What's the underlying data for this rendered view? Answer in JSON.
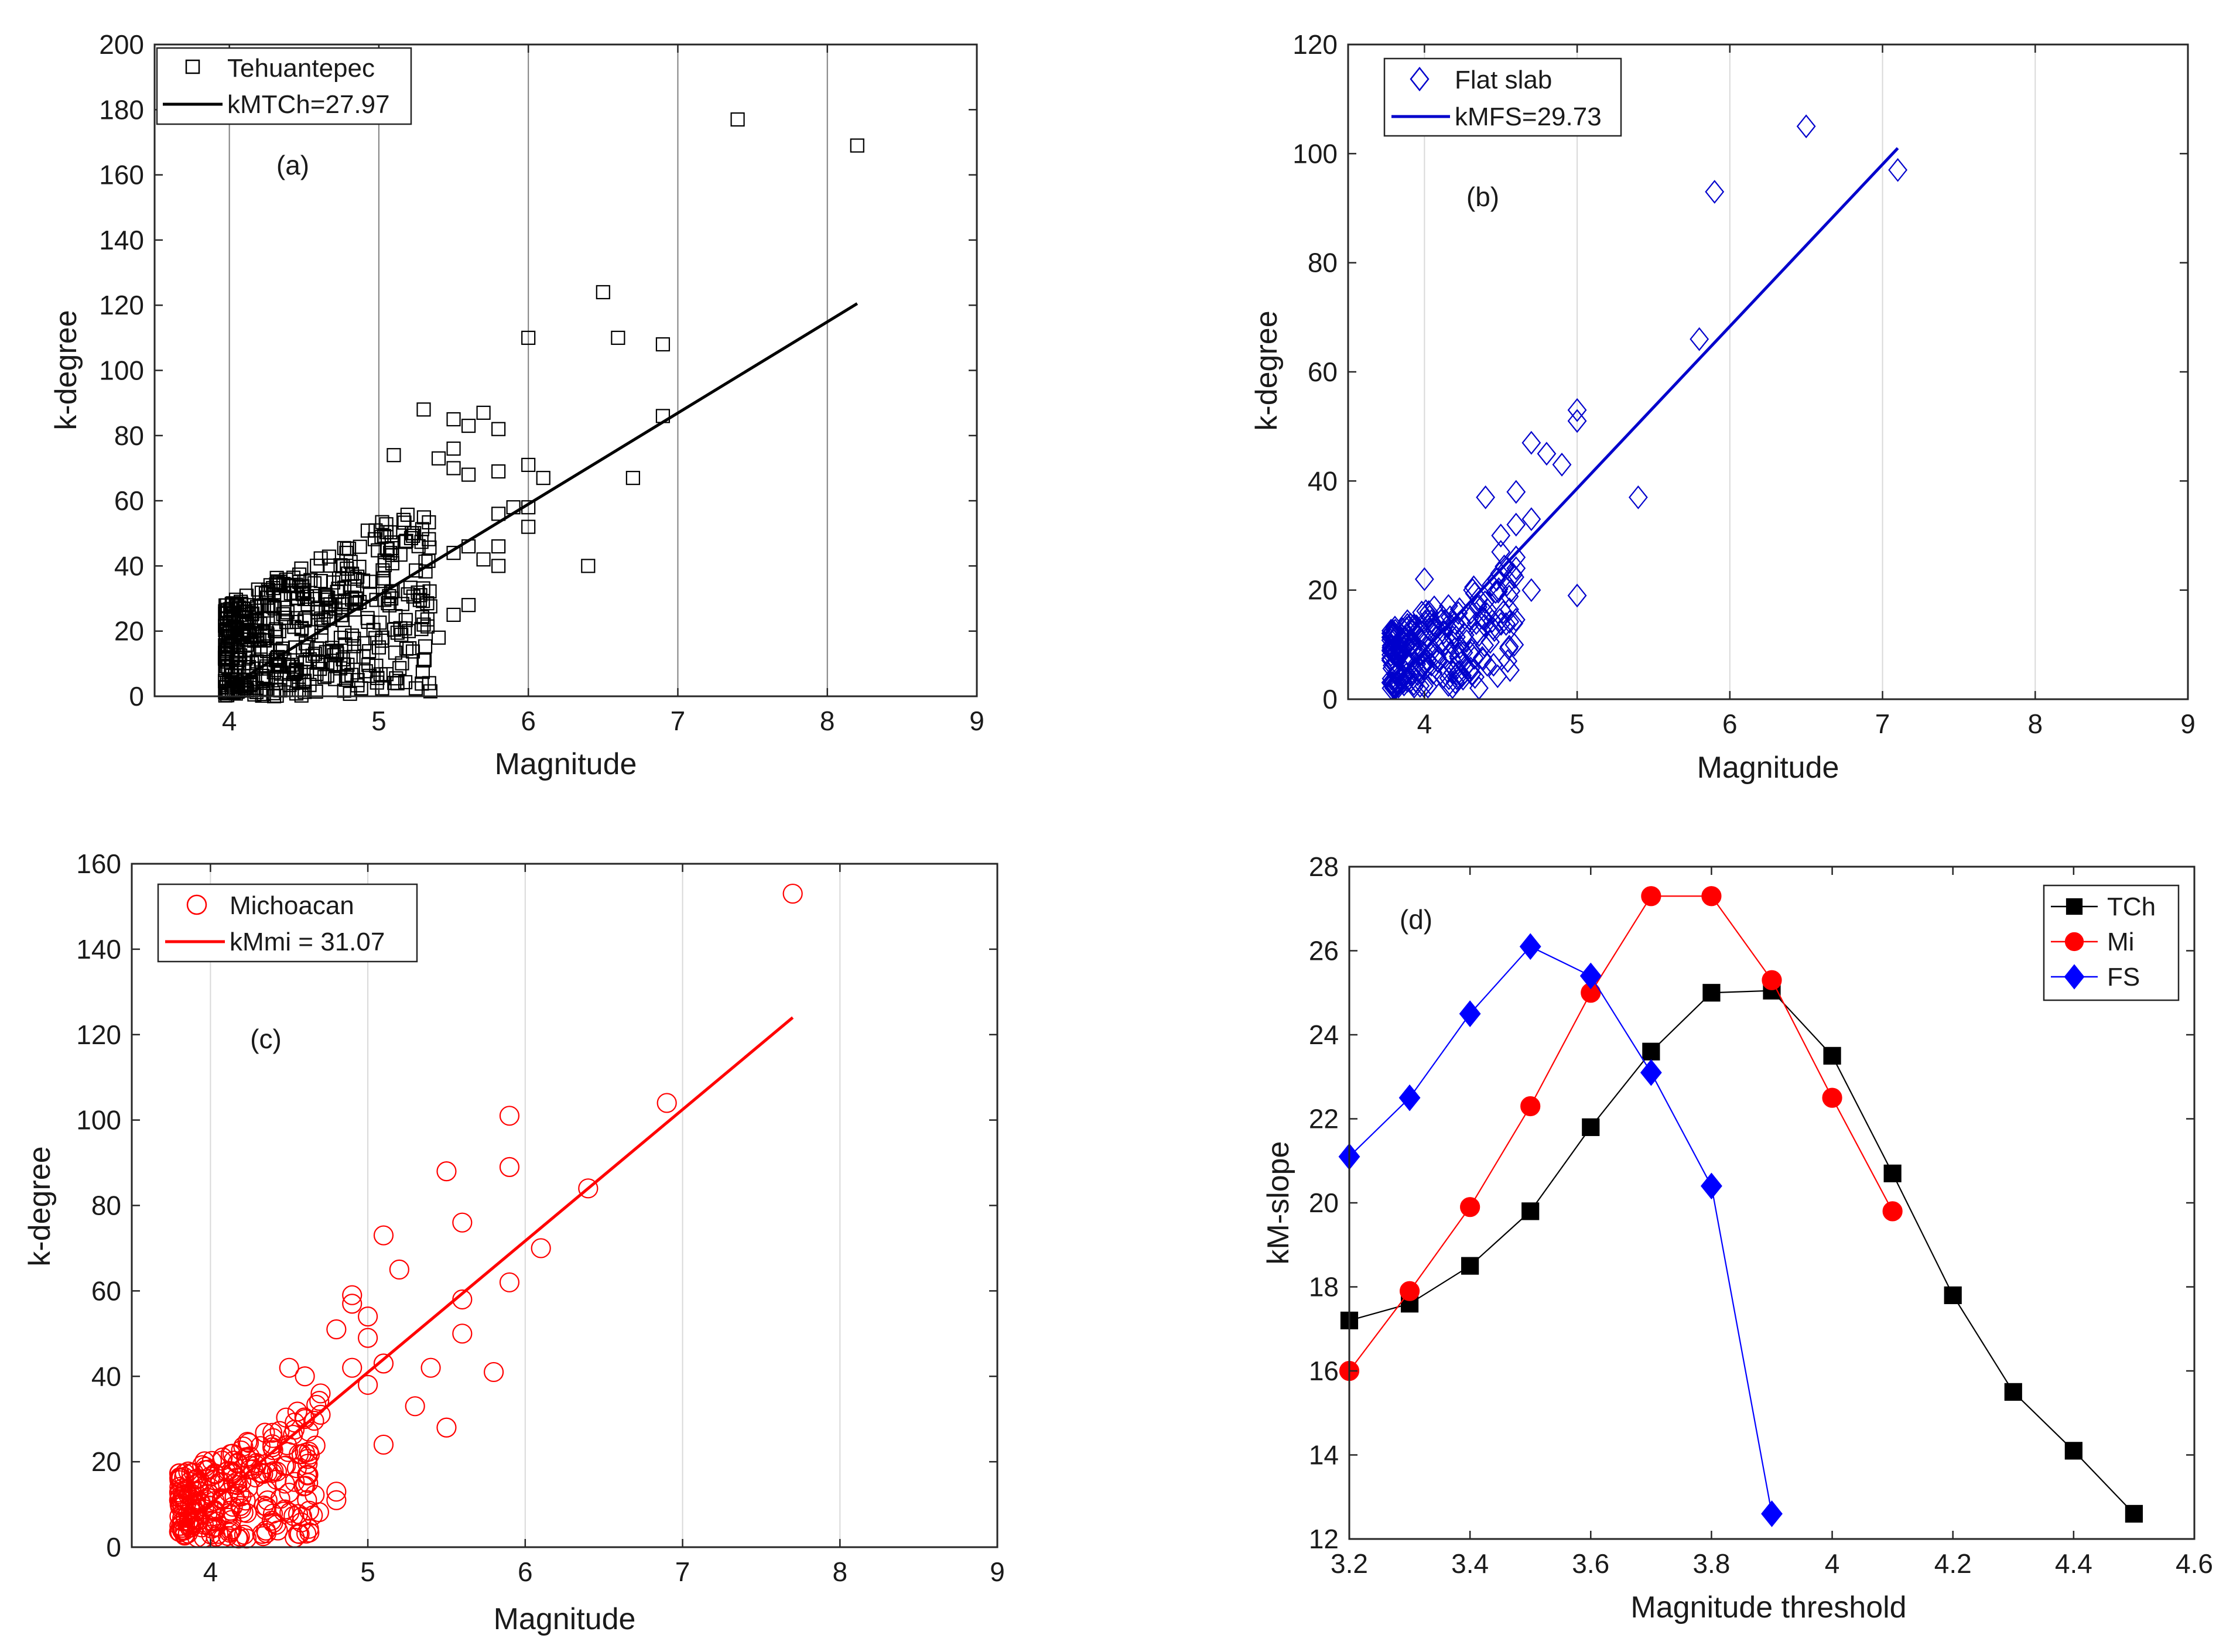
{
  "chart_data": [
    {
      "id": "a",
      "type": "scatter",
      "panel_label": "(a)",
      "xlabel": "Magnitude",
      "ylabel": "k-degree",
      "xlim": [
        3.5,
        9
      ],
      "ylim": [
        0,
        200
      ],
      "xticks": [
        4,
        5,
        6,
        7,
        8,
        9
      ],
      "yticks": [
        0,
        20,
        40,
        60,
        80,
        100,
        120,
        140,
        160,
        180,
        200
      ],
      "grid": "vertical",
      "grid_color": "#808080",
      "color": "#000000",
      "marker": "square",
      "legend": {
        "position": "top-left",
        "scatter_label": "Tehuantepec",
        "line_label": "kMTCh=27.97"
      },
      "fit_line": {
        "x": [
          4.0,
          8.2
        ],
        "y": [
          3.0,
          120.5
        ]
      },
      "series": [
        {
          "name": "Tehuantepec",
          "x": [
            7.4,
            8.2,
            6.5,
            6.6,
            6.9,
            6.0,
            6.9,
            5.3,
            5.5,
            5.6,
            5.7,
            5.8,
            5.1,
            5.5,
            5.4,
            6.0,
            6.1,
            6.7,
            5.5,
            5.6,
            5.8,
            5.8,
            5.9,
            6.0,
            6.0,
            5.8,
            5.5,
            5.6,
            5.7,
            5.8,
            6.4,
            5.3,
            5.5,
            5.6,
            5.2,
            5.0,
            5.3,
            5.4
          ],
          "y": [
            177,
            169,
            124,
            110,
            108,
            110,
            86,
            88,
            85,
            83,
            87,
            82,
            74,
            76,
            73,
            71,
            67,
            67,
            70,
            68,
            69,
            56,
            58,
            52,
            58,
            46,
            44,
            46,
            42,
            40,
            40,
            22,
            25,
            28,
            20,
            15,
            11,
            18
          ]
        },
        {
          "name": "Tehuantepec (dense cluster)",
          "x_range": [
            3.97,
            5.35
          ],
          "y_range": [
            0,
            62
          ],
          "approx_count": 520
        }
      ]
    },
    {
      "id": "b",
      "type": "scatter",
      "panel_label": "(b)",
      "xlabel": "Magnitude",
      "ylabel": "k-degree",
      "xlim": [
        3.5,
        9
      ],
      "ylim": [
        0,
        120
      ],
      "xticks": [
        4,
        5,
        6,
        7,
        8,
        9
      ],
      "yticks": [
        0,
        20,
        40,
        60,
        80,
        100,
        120
      ],
      "grid": "vertical",
      "grid_color": "#d9d9d9",
      "color": "#0000cc",
      "marker": "diamond",
      "legend": {
        "position": "top-left",
        "scatter_label": "Flat slab",
        "line_label": "kMFS=29.73"
      },
      "fit_line": {
        "x": [
          3.8,
          7.1
        ],
        "y": [
          3.0,
          101.0
        ]
      },
      "series": [
        {
          "name": "Flat slab",
          "x": [
            6.5,
            7.1,
            5.9,
            5.8,
            5.0,
            5.0,
            4.7,
            4.8,
            4.9,
            4.6,
            4.7,
            5.4,
            5.0,
            4.6,
            4.5,
            4.4,
            4.7,
            4.6,
            4.0,
            4.5,
            4.6
          ],
          "y": [
            105,
            97,
            93,
            66,
            53,
            51,
            47,
            45,
            43,
            38,
            33,
            37,
            19,
            32,
            30,
            37,
            20,
            24,
            22,
            27,
            26
          ]
        },
        {
          "name": "Flat slab (dense cluster)",
          "x_range": [
            3.78,
            4.6
          ],
          "y_range": [
            2,
            26
          ],
          "approx_count": 240
        }
      ]
    },
    {
      "id": "c",
      "type": "scatter",
      "panel_label": "(c)",
      "xlabel": "Magnitude",
      "ylabel": "k-degree",
      "xlim": [
        3.5,
        9
      ],
      "ylim": [
        0,
        160
      ],
      "xticks": [
        4,
        5,
        6,
        7,
        8,
        9
      ],
      "yticks": [
        0,
        20,
        40,
        60,
        80,
        100,
        120,
        140,
        160
      ],
      "grid": "vertical",
      "grid_color": "#d9d9d9",
      "color": "#ff0000",
      "marker": "circle",
      "legend": {
        "position": "top-left",
        "scatter_label": "Michoacan",
        "line_label": "kMmi = 31.07"
      },
      "fit_line": {
        "x": [
          3.8,
          7.7
        ],
        "y": [
          4.0,
          124.0
        ]
      },
      "series": [
        {
          "name": "Michoacan",
          "x": [
            7.7,
            6.9,
            5.9,
            5.5,
            5.9,
            6.4,
            5.6,
            5.1,
            6.1,
            5.2,
            4.9,
            4.9,
            5.0,
            5.0,
            4.8,
            5.6,
            5.6,
            5.9,
            5.8,
            5.4,
            5.1,
            5.3,
            5.5,
            5.1,
            4.8,
            4.8,
            4.9,
            5.0,
            4.5,
            4.6,
            4.7,
            4.6,
            4.7
          ],
          "y": [
            153,
            104,
            101,
            88,
            89,
            84,
            76,
            73,
            70,
            65,
            59,
            57,
            54,
            49,
            51,
            58,
            50,
            62,
            41,
            42,
            43,
            33,
            28,
            24,
            13,
            11,
            42,
            38,
            42,
            40,
            36,
            30,
            31
          ]
        },
        {
          "name": "Michoacan (dense cluster)",
          "x_range": [
            3.8,
            4.7
          ],
          "y_range": [
            2,
            36
          ],
          "approx_count": 260
        }
      ]
    },
    {
      "id": "d",
      "type": "line",
      "panel_label": "(d)",
      "xlabel": "Magnitude threshold",
      "ylabel": "kM-slope",
      "xlim": [
        3.2,
        4.6
      ],
      "ylim": [
        12,
        28
      ],
      "xticks": [
        "3.2",
        "3.4",
        "3.6",
        "3.8",
        "4",
        "4.2",
        "4.4",
        "4.6"
      ],
      "yticks": [
        "12",
        "14",
        "16",
        "18",
        "20",
        "22",
        "24",
        "26",
        "28"
      ],
      "grid": "none",
      "legend": {
        "position": "top-right"
      },
      "series": [
        {
          "name": "TCh",
          "color": "#000000",
          "marker": "square",
          "x": [
            3.2,
            3.3,
            3.4,
            3.5,
            3.6,
            3.7,
            3.8,
            3.9,
            4.0,
            4.1,
            4.2,
            4.3,
            4.4,
            4.5
          ],
          "y": [
            17.2,
            17.6,
            18.5,
            19.8,
            21.8,
            23.6,
            25.0,
            25.05,
            23.5,
            20.7,
            17.8,
            15.5,
            14.1,
            12.6
          ]
        },
        {
          "name": "Mi",
          "color": "#ff0000",
          "marker": "circle",
          "x": [
            3.2,
            3.3,
            3.4,
            3.5,
            3.6,
            3.7,
            3.8,
            3.9,
            4.0,
            4.1
          ],
          "y": [
            16.0,
            17.9,
            19.9,
            22.3,
            25.0,
            27.3,
            27.3,
            25.3,
            22.5,
            19.8
          ]
        },
        {
          "name": "FS",
          "color": "#0000ff",
          "marker": "diamond",
          "x": [
            3.2,
            3.3,
            3.4,
            3.5,
            3.6,
            3.7,
            3.8,
            3.9
          ],
          "y": [
            21.1,
            22.5,
            24.5,
            26.1,
            25.4,
            23.1,
            20.4,
            12.6
          ]
        }
      ]
    }
  ]
}
